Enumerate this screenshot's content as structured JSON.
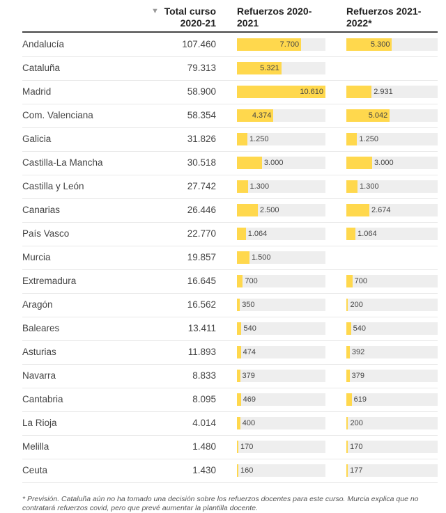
{
  "header": {
    "col_name": "",
    "col_total": "Total curso 2020-21",
    "col_r1": "Refuerzos 2020-2021",
    "col_r2": "Refuerzos 2021-2022*",
    "sort_icon": "triangle-down"
  },
  "colors": {
    "bar": "#ffd84d",
    "track": "#eeeeee"
  },
  "chart_data": {
    "type": "table",
    "columns": [
      "",
      "Total curso 2020-21",
      "Refuerzos 2020-2021",
      "Refuerzos 2021-2022*"
    ],
    "bar_max": 10610,
    "rows": [
      {
        "name": "Andalucía",
        "total": "107.460",
        "r1": 7700,
        "r1_label": "7.700",
        "r2": 5300,
        "r2_label": "5.300"
      },
      {
        "name": "Cataluña",
        "total": "79.313",
        "r1": 5321,
        "r1_label": "5.321",
        "r2": null,
        "r2_label": ""
      },
      {
        "name": "Madrid",
        "total": "58.900",
        "r1": 10610,
        "r1_label": "10.610",
        "r2": 2931,
        "r2_label": "2.931"
      },
      {
        "name": "Com. Valenciana",
        "total": "58.354",
        "r1": 4374,
        "r1_label": "4.374",
        "r2": 5042,
        "r2_label": "5.042"
      },
      {
        "name": "Galicia",
        "total": "31.826",
        "r1": 1250,
        "r1_label": "1.250",
        "r2": 1250,
        "r2_label": "1.250"
      },
      {
        "name": "Castilla-La Mancha",
        "total": "30.518",
        "r1": 3000,
        "r1_label": "3.000",
        "r2": 3000,
        "r2_label": "3.000"
      },
      {
        "name": "Castilla y León",
        "total": "27.742",
        "r1": 1300,
        "r1_label": "1.300",
        "r2": 1300,
        "r2_label": "1.300"
      },
      {
        "name": "Canarias",
        "total": "26.446",
        "r1": 2500,
        "r1_label": "2.500",
        "r2": 2674,
        "r2_label": "2.674"
      },
      {
        "name": "País Vasco",
        "total": "22.770",
        "r1": 1064,
        "r1_label": "1.064",
        "r2": 1064,
        "r2_label": "1.064"
      },
      {
        "name": "Murcia",
        "total": "19.857",
        "r1": 1500,
        "r1_label": "1.500",
        "r2": null,
        "r2_label": ""
      },
      {
        "name": "Extremadura",
        "total": "16.645",
        "r1": 700,
        "r1_label": "700",
        "r2": 700,
        "r2_label": "700"
      },
      {
        "name": "Aragón",
        "total": "16.562",
        "r1": 350,
        "r1_label": "350",
        "r2": 200,
        "r2_label": "200"
      },
      {
        "name": "Baleares",
        "total": "13.411",
        "r1": 540,
        "r1_label": "540",
        "r2": 540,
        "r2_label": "540"
      },
      {
        "name": "Asturias",
        "total": "11.893",
        "r1": 474,
        "r1_label": "474",
        "r2": 392,
        "r2_label": "392"
      },
      {
        "name": "Navarra",
        "total": "8.833",
        "r1": 379,
        "r1_label": "379",
        "r2": 379,
        "r2_label": "379"
      },
      {
        "name": "Cantabria",
        "total": "8.095",
        "r1": 469,
        "r1_label": "469",
        "r2": 619,
        "r2_label": "619"
      },
      {
        "name": "La Rioja",
        "total": "4.014",
        "r1": 400,
        "r1_label": "400",
        "r2": 200,
        "r2_label": "200"
      },
      {
        "name": "Melilla",
        "total": "1.480",
        "r1": 170,
        "r1_label": "170",
        "r2": 170,
        "r2_label": "170"
      },
      {
        "name": "Ceuta",
        "total": "1.430",
        "r1": 160,
        "r1_label": "160",
        "r2": 177,
        "r2_label": "177"
      }
    ]
  },
  "footnote": "* Previsión. Cataluña  aún no ha tomado una decisión sobre los refuerzos docentes para este curso. Murcia explica que no contratará refuerzos covid, pero que prevé aumentar la plantilla docente."
}
